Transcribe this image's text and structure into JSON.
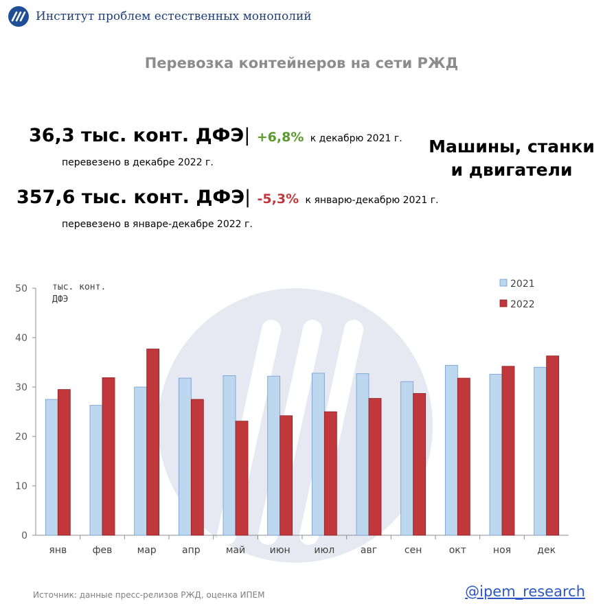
{
  "header": {
    "institute": "Институт проблем естественных монополий"
  },
  "page": {
    "title": "Перевозка контейнеров на сети РЖД"
  },
  "stats": {
    "dec": {
      "value": "36,3 тыс. конт. ДФЭ",
      "sep": "|",
      "pct": "+6,8%",
      "comparison": "к декабрю 2021 г.",
      "subtitle": "перевезено в декабре 2022 г."
    },
    "year": {
      "value": "357,6 тыс. конт. ДФЭ",
      "sep": "|",
      "pct": "-5,3%",
      "comparison": "к январю-декабрю 2021 г.",
      "subtitle": "перевезено в январе-декабре 2022 г."
    }
  },
  "cargo": {
    "line1": "Машины, станки",
    "line2": "и двигатели"
  },
  "footer": {
    "source": "Источник: данные пресс-релизов РЖД, оценка ИПЕМ",
    "handle": "@ipem_research"
  },
  "colors": {
    "series_2021": "#bdd7ee",
    "series_2022": "#c0383b",
    "up": "#5a9a2e",
    "down": "#c0383b",
    "watermark": "#e6e9f1",
    "brand": "#1f4e96"
  },
  "icons": {
    "logo": "ipem-logo-icon",
    "watermark": "ipem-watermark-icon"
  },
  "chart_data": {
    "type": "bar",
    "title": "",
    "ylabel": "тыс. конт. ДФЭ",
    "xlabel": "",
    "ylim": [
      0,
      50
    ],
    "yticks": [
      0,
      10,
      20,
      30,
      40,
      50
    ],
    "grid": false,
    "legend_position": "top-right",
    "categories": [
      "янв",
      "фев",
      "мар",
      "апр",
      "май",
      "июн",
      "июл",
      "авг",
      "сен",
      "окт",
      "ноя",
      "дек"
    ],
    "series": [
      {
        "name": "2021",
        "color": "#bdd7ee",
        "values": [
          27.5,
          26.3,
          30.0,
          31.8,
          32.3,
          32.2,
          32.8,
          32.7,
          31.1,
          34.4,
          32.6,
          34.0
        ]
      },
      {
        "name": "2022",
        "color": "#c0383b",
        "values": [
          29.5,
          31.9,
          37.7,
          27.5,
          23.1,
          24.2,
          25.0,
          27.7,
          28.7,
          31.8,
          34.2,
          36.3
        ]
      }
    ]
  }
}
